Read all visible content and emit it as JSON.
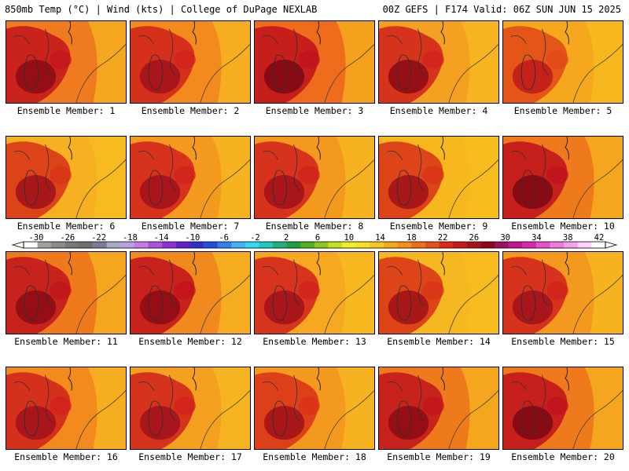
{
  "header": {
    "left": "850mb Temp (°C) | Wind (kts) | College of DuPage NEXLAB",
    "right": "00Z GEFS | F174 Valid: 06Z SUN JUN 15 2025"
  },
  "members": [
    {
      "label": "Ensemble Member: 1",
      "base": "#f07a1e",
      "hot": "#c2141c",
      "hot2": "#8a0a14"
    },
    {
      "label": "Ensemble Member: 2",
      "base": "#f28a1e",
      "hot": "#d0201c",
      "hot2": "#a0101a"
    },
    {
      "label": "Ensemble Member: 3",
      "base": "#ee6c1c",
      "hot": "#c0101c",
      "hot2": "#7a0814"
    },
    {
      "label": "Ensemble Member: 4",
      "base": "#f4a020",
      "hot": "#d0201c",
      "hot2": "#8a0a14"
    },
    {
      "label": "Ensemble Member: 5",
      "base": "#f5a81e",
      "hot": "#e04818",
      "hot2": "#c0181c"
    },
    {
      "label": "Ensemble Member: 6",
      "base": "#f6b020",
      "hot": "#d83018",
      "hot2": "#a0101a"
    },
    {
      "label": "Ensemble Member: 7",
      "base": "#f49a1e",
      "hot": "#d0201c",
      "hot2": "#a0101a"
    },
    {
      "label": "Ensemble Member: 8",
      "base": "#f39a1e",
      "hot": "#d0201c",
      "hot2": "#a0101a"
    },
    {
      "label": "Ensemble Member: 9",
      "base": "#f6b81e",
      "hot": "#d83018",
      "hot2": "#a0101a"
    },
    {
      "label": "Ensemble Member: 10",
      "base": "#ee7a1c",
      "hot": "#c0101c",
      "hot2": "#7a0814"
    },
    {
      "label": "Ensemble Member: 11",
      "base": "#ee7a1c",
      "hot": "#c0141c",
      "hot2": "#8a0a14"
    },
    {
      "label": "Ensemble Member: 12",
      "base": "#f08a1e",
      "hot": "#c0101c",
      "hot2": "#8a0a14"
    },
    {
      "label": "Ensemble Member: 13",
      "base": "#f5a820",
      "hot": "#d0201c",
      "hot2": "#a0101a"
    },
    {
      "label": "Ensemble Member: 14",
      "base": "#f6b820",
      "hot": "#d83018",
      "hot2": "#a0101a"
    },
    {
      "label": "Ensemble Member: 15",
      "base": "#f39a1e",
      "hot": "#d0201c",
      "hot2": "#a0101a"
    },
    {
      "label": "Ensemble Member: 16",
      "base": "#f28a1e",
      "hot": "#d0201c",
      "hot2": "#a0101a"
    },
    {
      "label": "Ensemble Member: 17",
      "base": "#f4a020",
      "hot": "#d0201c",
      "hot2": "#a0101a"
    },
    {
      "label": "Ensemble Member: 18",
      "base": "#f39a1e",
      "hot": "#d83018",
      "hot2": "#a0101a"
    },
    {
      "label": "Ensemble Member: 19",
      "base": "#ee7a1c",
      "hot": "#c0141c",
      "hot2": "#8a0a14"
    },
    {
      "label": "Ensemble Member: 20",
      "base": "#ee7a1c",
      "hot": "#c0101c",
      "hot2": "#7a0814"
    }
  ],
  "colorbar": {
    "ticks": [
      "-30",
      "-26",
      "-22",
      "-18",
      "-14",
      "-10",
      "-6",
      "-2",
      "2",
      "6",
      "10",
      "14",
      "18",
      "22",
      "26",
      "30",
      "34",
      "38",
      "42"
    ],
    "colors": [
      "#ffffff",
      "#a0a0a0",
      "#8c8c8c",
      "#787878",
      "#6e6e6e",
      "#7a7a9a",
      "#a8a8c8",
      "#b8a0e0",
      "#c878e8",
      "#b050e0",
      "#9030d8",
      "#6020c8",
      "#3030c8",
      "#2050e0",
      "#3080f0",
      "#40b0f8",
      "#30d8f0",
      "#20c8c0",
      "#20b080",
      "#20a040",
      "#50b020",
      "#90c820",
      "#c8e020",
      "#f0f020",
      "#f8e020",
      "#f8c820",
      "#f8a818",
      "#f89018",
      "#f07018",
      "#e85018",
      "#e02818",
      "#c81818",
      "#a81018",
      "#900818",
      "#a01060",
      "#c01890",
      "#d828b0",
      "#e850d0",
      "#f078e0",
      "#f8a0f0",
      "#fcd0f8",
      "#ffffff"
    ]
  }
}
